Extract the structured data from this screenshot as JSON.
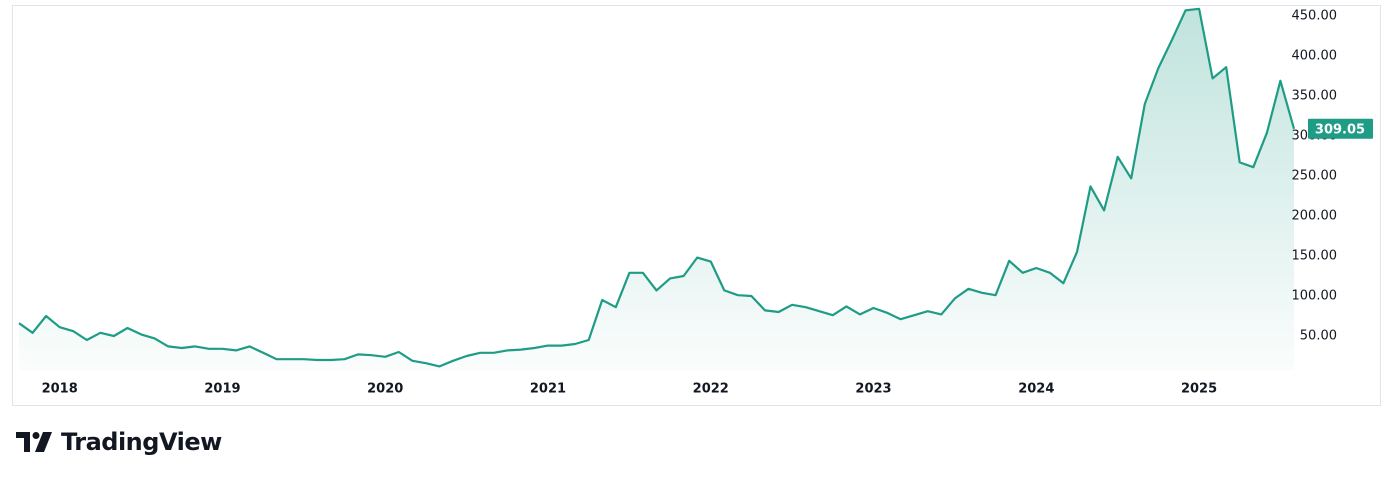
{
  "chart_data": {
    "type": "area",
    "brand": "TradingView",
    "categories": [
      null,
      null,
      null,
      "2018",
      null,
      null,
      null,
      null,
      null,
      null,
      null,
      null,
      null,
      null,
      null,
      "2019",
      null,
      null,
      null,
      null,
      null,
      null,
      null,
      null,
      null,
      null,
      null,
      "2020",
      null,
      null,
      null,
      null,
      null,
      null,
      null,
      null,
      null,
      null,
      null,
      "2021",
      null,
      null,
      null,
      null,
      null,
      null,
      null,
      null,
      null,
      null,
      null,
      "2022",
      null,
      null,
      null,
      null,
      null,
      null,
      null,
      null,
      null,
      null,
      null,
      "2023",
      null,
      null,
      null,
      null,
      null,
      null,
      null,
      null,
      null,
      null,
      null,
      "2024",
      null,
      null,
      null,
      null,
      null,
      null,
      null,
      null,
      null,
      null,
      null,
      "2025",
      null,
      null,
      null,
      null,
      null,
      null,
      null
    ],
    "series": [
      {
        "color": "#1f9c86",
        "values": [
          66,
          54,
          75,
          61,
          56,
          45,
          54,
          50,
          60,
          52,
          47,
          37,
          35,
          37,
          34,
          34,
          32,
          37,
          29,
          21,
          21,
          21,
          20,
          20,
          21,
          27,
          26,
          24,
          30,
          19,
          16,
          12,
          19,
          25,
          29,
          29,
          32,
          33,
          35,
          38,
          38,
          40,
          45,
          95,
          86,
          129,
          129,
          107,
          122,
          125,
          148,
          143,
          107,
          101,
          100,
          82,
          80,
          89,
          86,
          81,
          76,
          87,
          77,
          85,
          79,
          71,
          76,
          81,
          77,
          97,
          109,
          104,
          101,
          144,
          129,
          135,
          129,
          116,
          155,
          237,
          207,
          274,
          247,
          340,
          385,
          420,
          457,
          459,
          372,
          386,
          267,
          261,
          304,
          369,
          309.05
        ]
      }
    ],
    "ylim": [
      7.5,
      462.5
    ],
    "yticks": [
      {
        "value": 50,
        "label": "50.00"
      },
      {
        "value": 100,
        "label": "100.00"
      },
      {
        "value": 150,
        "label": "150.00"
      },
      {
        "value": 200,
        "label": "200.00"
      },
      {
        "value": 250,
        "label": "250.00"
      },
      {
        "value": 300,
        "label": "300.00"
      },
      {
        "value": 350,
        "label": "350.00"
      },
      {
        "value": 400,
        "label": "400.00"
      },
      {
        "value": 450,
        "label": "450.00"
      }
    ],
    "grid": false
  }
}
